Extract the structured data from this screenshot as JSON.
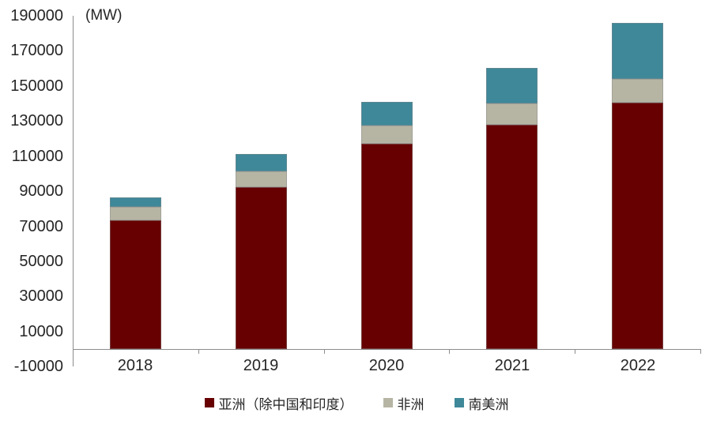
{
  "unit_label": "(MW)",
  "colors": {
    "background": "#FFFFFF",
    "axis": "#8C8C8C",
    "text": "#262626",
    "series_asia": "#670000",
    "series_africa": "#B6B5A4",
    "series_south_america": "#3E8899"
  },
  "legend": {
    "items": [
      {
        "label": "亚洲（除中国和印度）",
        "color": "#670000"
      },
      {
        "label": "非洲",
        "color": "#B6B5A4"
      },
      {
        "label": "南美洲",
        "color": "#3E8899"
      }
    ]
  },
  "chart_data": {
    "type": "bar",
    "stacked": true,
    "title": "(MW)",
    "categories": [
      "2018",
      "2019",
      "2020",
      "2021",
      "2022"
    ],
    "series": [
      {
        "name": "亚洲（除中国和印度）",
        "color": "#670000",
        "values": [
          73500,
          92500,
          117000,
          128000,
          140500
        ]
      },
      {
        "name": "非洲",
        "color": "#B6B5A4",
        "values": [
          7500,
          9000,
          10500,
          12000,
          13500
        ]
      },
      {
        "name": "南美洲",
        "color": "#3E8899",
        "values": [
          5500,
          9500,
          13500,
          20500,
          32000
        ]
      }
    ],
    "totals": [
      86500,
      111000,
      141000,
      160500,
      186000
    ],
    "xlabel": "",
    "ylabel": "(MW)",
    "ylim": [
      -10000,
      190000
    ],
    "ytick_step": 20000,
    "ytick_labels": [
      "190000",
      "170000",
      "150000",
      "130000",
      "110000",
      "90000",
      "70000",
      "50000",
      "30000",
      "10000",
      "-10000"
    ],
    "grid": false,
    "legend_position": "bottom"
  }
}
